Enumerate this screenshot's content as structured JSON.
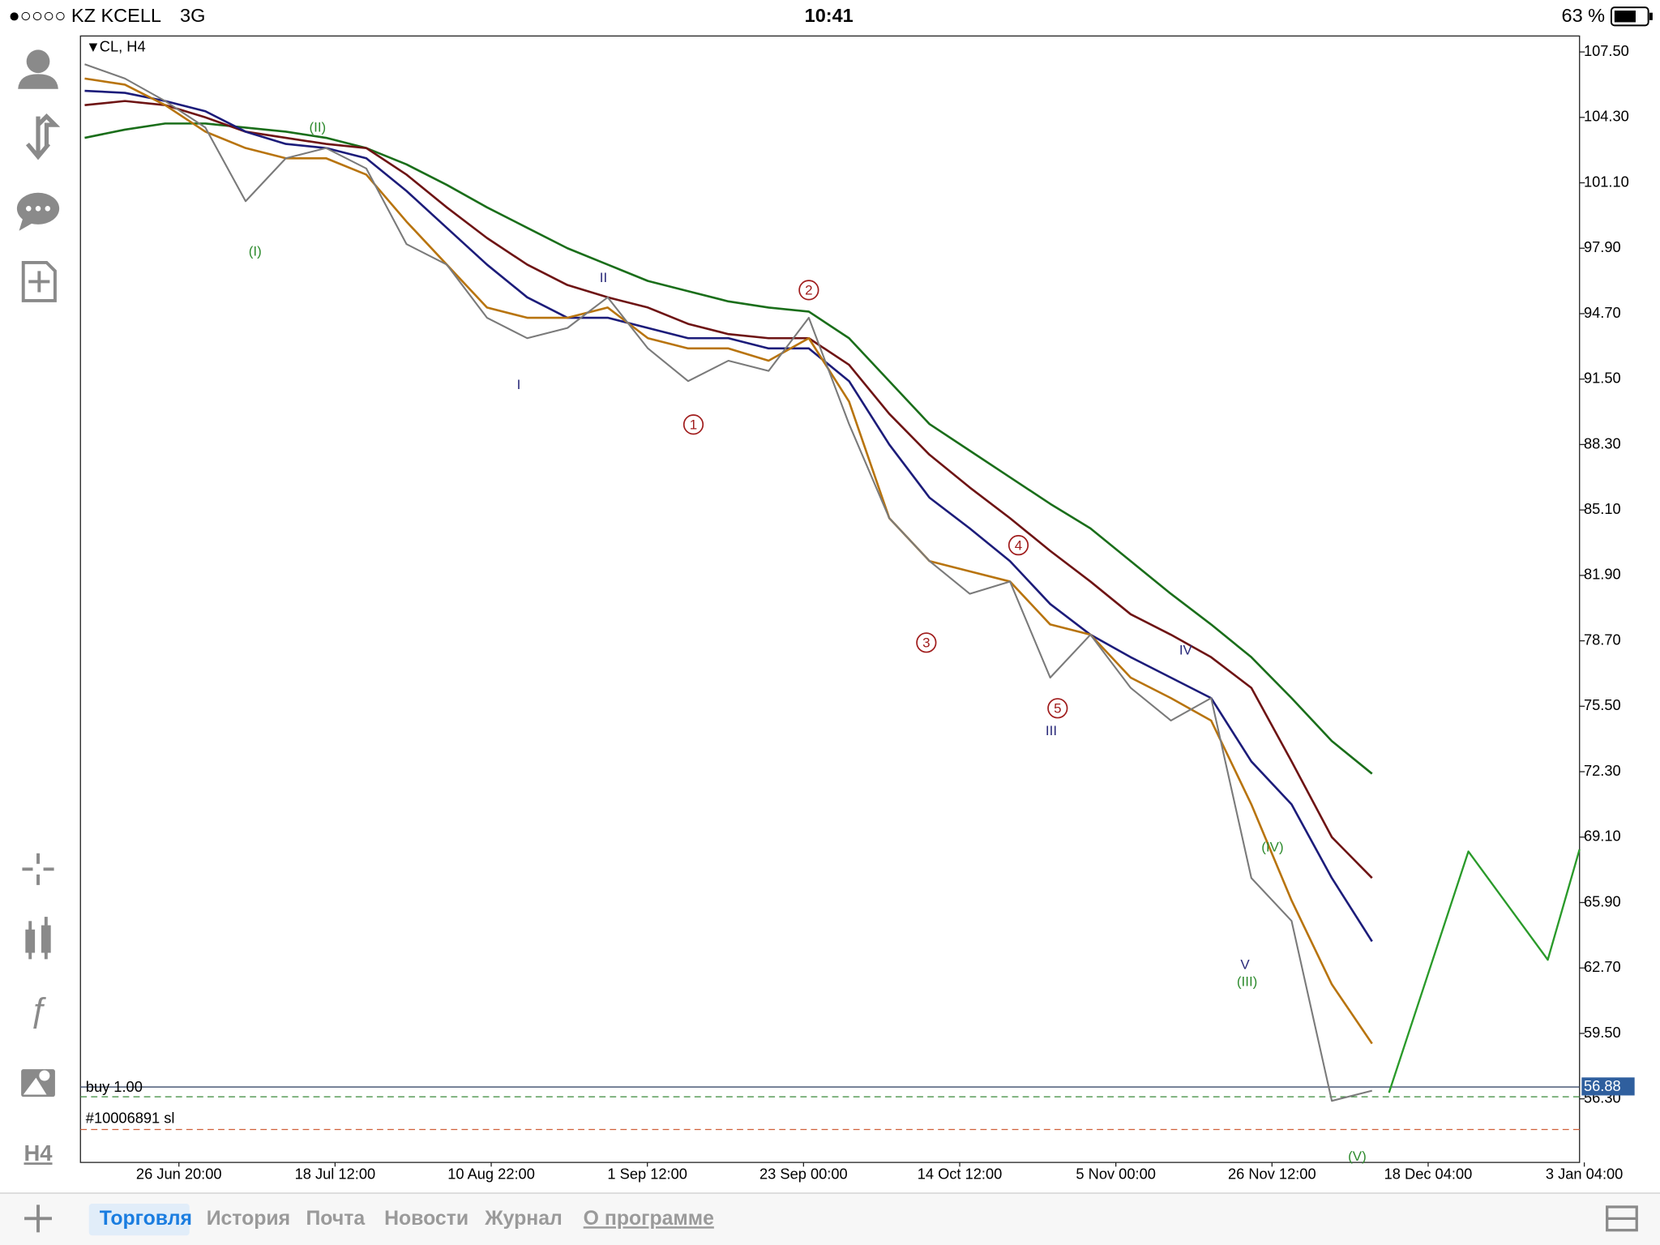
{
  "status_bar": {
    "carrier": "●○○○○ KZ KCELL",
    "network": "3G",
    "time": "10:41",
    "battery": "63 %"
  },
  "chart": {
    "symbol": "CL, H4",
    "ylim": [
      53.19,
      108.28
    ],
    "yticks": [
      {
        "value": 107.5,
        "label": "107.50"
      },
      {
        "value": 104.3,
        "label": "104.30"
      },
      {
        "value": 101.1,
        "label": "101.10"
      },
      {
        "value": 97.9,
        "label": "97.90"
      },
      {
        "value": 94.7,
        "label": "94.70"
      },
      {
        "value": 91.5,
        "label": "91.50"
      },
      {
        "value": 88.3,
        "label": "88.30"
      },
      {
        "value": 85.1,
        "label": "85.10"
      },
      {
        "value": 81.9,
        "label": "81.90"
      },
      {
        "value": 78.7,
        "label": "78.70"
      },
      {
        "value": 75.5,
        "label": "75.50"
      },
      {
        "value": 72.3,
        "label": "72.30"
      },
      {
        "value": 69.1,
        "label": "69.10"
      },
      {
        "value": 65.9,
        "label": "65.90"
      },
      {
        "value": 62.7,
        "label": "62.70"
      },
      {
        "value": 59.5,
        "label": "59.50"
      },
      {
        "value": 56.3,
        "label": "56.30"
      }
    ],
    "x_labels": [
      "26 Jun 20:00",
      "18 Jul 12:00",
      "10 Aug 22:00",
      "1 Sep 12:00",
      "23 Sep 00:00",
      "14 Oct 12:00",
      "5 Nov 00:00",
      "26 Nov 12:00",
      "18 Dec 04:00",
      "3 Jan 04:00"
    ],
    "price": {
      "color": "#7a7a7a",
      "values": [
        106.9,
        106.2,
        105.1,
        103.8,
        100.2,
        102.3,
        102.8,
        101.8,
        98.1,
        97.1,
        94.5,
        93.5,
        94.0,
        95.5,
        93.0,
        91.4,
        92.4,
        91.9,
        94.5,
        89.3,
        84.7,
        82.6,
        81.0,
        81.6,
        76.9,
        79.0,
        76.4,
        74.8,
        75.9,
        67.1,
        65.0,
        56.2,
        56.7
      ]
    },
    "moving_averages": [
      {
        "color": "#b8740e",
        "values": [
          106.2,
          105.9,
          104.9,
          103.6,
          102.8,
          102.3,
          102.3,
          101.5,
          99.2,
          97.1,
          95.0,
          94.5,
          94.5,
          95.0,
          93.5,
          93.0,
          93.0,
          92.4,
          93.5,
          90.4,
          84.7,
          82.6,
          82.1,
          81.6,
          79.5,
          79.0,
          76.9,
          75.9,
          74.8,
          70.7,
          66.0,
          61.9,
          59.0
        ]
      },
      {
        "color": "#1c1c7a",
        "values": [
          105.6,
          105.5,
          105.1,
          104.6,
          103.6,
          103.0,
          102.8,
          102.3,
          100.7,
          98.9,
          97.1,
          95.5,
          94.5,
          94.5,
          94.0,
          93.5,
          93.5,
          93.0,
          93.0,
          91.4,
          88.3,
          85.7,
          84.2,
          82.6,
          80.5,
          79.0,
          77.9,
          76.9,
          75.9,
          72.8,
          70.7,
          67.1,
          64.0
        ]
      },
      {
        "color": "#6e1414",
        "values": [
          104.9,
          105.1,
          104.9,
          104.3,
          103.6,
          103.3,
          103.0,
          102.8,
          101.5,
          99.9,
          98.4,
          97.1,
          96.1,
          95.5,
          95.0,
          94.2,
          93.7,
          93.5,
          93.5,
          92.2,
          89.8,
          87.8,
          86.2,
          84.7,
          83.1,
          81.6,
          80.0,
          79.0,
          77.9,
          76.4,
          72.8,
          69.1,
          67.1
        ]
      },
      {
        "color": "#1a6e1a",
        "values": [
          103.3,
          103.7,
          104.0,
          104.0,
          103.8,
          103.6,
          103.3,
          102.8,
          102.0,
          101.0,
          99.9,
          98.9,
          97.9,
          97.1,
          96.3,
          95.8,
          95.3,
          95.0,
          94.8,
          93.5,
          91.4,
          89.3,
          88.0,
          86.7,
          85.4,
          84.2,
          82.6,
          81.0,
          79.5,
          77.9,
          75.9,
          73.8,
          72.2
        ]
      }
    ],
    "projection": {
      "color": "#2a9a2a",
      "values": [
        56.6,
        68.4,
        63.1,
        68.5
      ]
    },
    "position_line": {
      "color": "#3a4a6a",
      "label": "buy 1.00",
      "price": {
        "value": 56.88,
        "label": "56.88"
      }
    },
    "target_line": {
      "color": "#3a8a3a",
      "price": 56.4
    },
    "stop_line": {
      "color": "#d0603a",
      "label": "#10006891 sl",
      "price": 54.8
    },
    "wave_labels": [
      {
        "text": "(I)",
        "color": "#2e8b2e"
      },
      {
        "text": "(II)",
        "color": "#2e8b2e"
      },
      {
        "text": "I",
        "color": "#2a2a7a"
      },
      {
        "text": "II",
        "color": "#2a2a7a"
      },
      {
        "text": "1",
        "color": "#a01c1c"
      },
      {
        "text": "2",
        "color": "#a01c1c"
      },
      {
        "text": "3",
        "color": "#a01c1c"
      },
      {
        "text": "4",
        "color": "#a01c1c"
      },
      {
        "text": "5",
        "color": "#a01c1c"
      },
      {
        "text": "III",
        "color": "#2a2a7a"
      },
      {
        "text": "IV",
        "color": "#2a2a7a"
      },
      {
        "text": "V",
        "color": "#2a2a7a"
      },
      {
        "text": "(III)",
        "color": "#2e8b2e"
      },
      {
        "text": "(IV)",
        "color": "#2e8b2e"
      },
      {
        "text": "(V)",
        "color": "#2e8b2e"
      }
    ]
  },
  "sidebar": {
    "timeframe": "H4"
  },
  "tabs": [
    "Торговля",
    "История",
    "Почта",
    "Новости",
    "Журнал",
    "О программе"
  ]
}
